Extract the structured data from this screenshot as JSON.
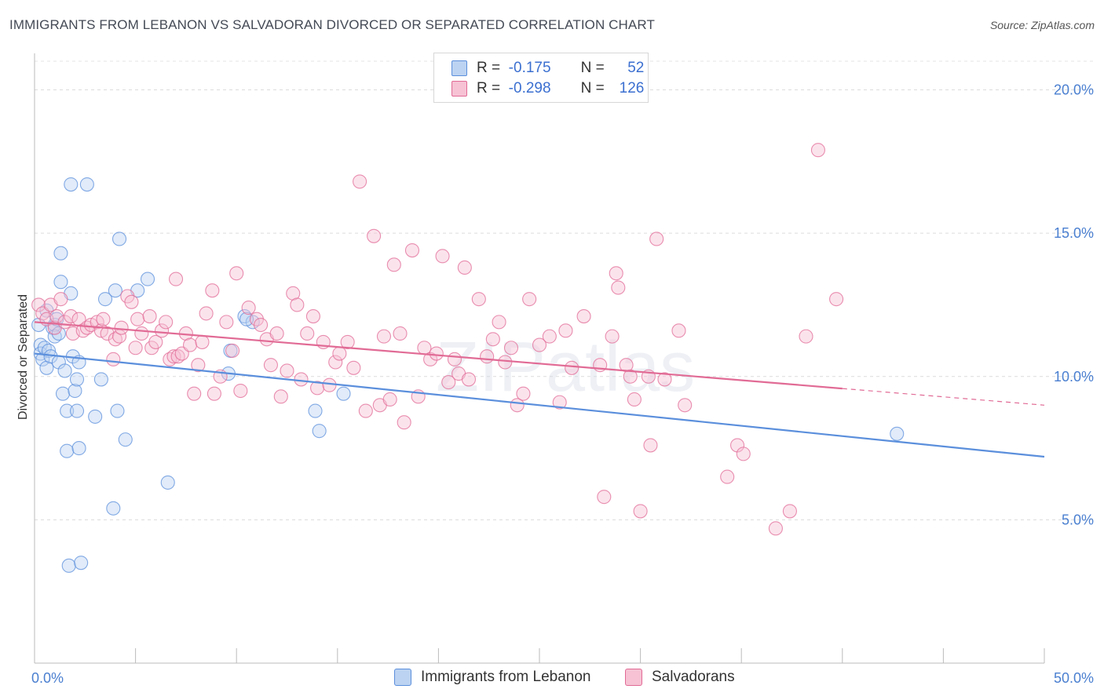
{
  "title": "IMMIGRANTS FROM LEBANON VS SALVADORAN DIVORCED OR SEPARATED CORRELATION CHART",
  "source": "Source: ZipAtlas.com",
  "watermark": "ZIPatlas",
  "legend_top": [
    {
      "r_label": "R =",
      "r_value": "-0.175",
      "n_label": "N =",
      "n_value": "52",
      "color": "#5b8fdc",
      "fill": "#bcd3f2"
    },
    {
      "r_label": "R =",
      "r_value": "-0.298",
      "n_label": "N =",
      "n_value": "126",
      "color": "#e16b95",
      "fill": "#f6c2d4"
    }
  ],
  "chart_data": {
    "type": "scatter",
    "title": "IMMIGRANTS FROM LEBANON VS SALVADORAN DIVORCED OR SEPARATED CORRELATION CHART",
    "xlabel": "",
    "ylabel": "Divorced or Separated",
    "xlim": [
      0,
      50
    ],
    "ylim": [
      0,
      21
    ],
    "x_tick_labels": [
      "0.0%",
      "50.0%"
    ],
    "y_ticks": [
      5,
      10,
      15,
      20
    ],
    "y_tick_labels": [
      "5.0%",
      "10.0%",
      "15.0%",
      "20.0%"
    ],
    "grid": true,
    "legend_position": "top-center",
    "series": [
      {
        "name": "Immigrants from Lebanon",
        "color": "#5b8fdc",
        "fill": "#bcd3f2",
        "trend": {
          "x0": 0,
          "y0": 10.8,
          "x1": 50,
          "y1": 7.2,
          "dashed_from": null
        },
        "points": [
          [
            0.2,
            11.8
          ],
          [
            0.3,
            11.1
          ],
          [
            0.3,
            10.8
          ],
          [
            0.4,
            10.6
          ],
          [
            0.5,
            11.0
          ],
          [
            0.6,
            10.3
          ],
          [
            0.6,
            12.3
          ],
          [
            0.7,
            10.9
          ],
          [
            0.8,
            10.7
          ],
          [
            0.9,
            11.7
          ],
          [
            1.0,
            11.8
          ],
          [
            1.0,
            11.4
          ],
          [
            1.1,
            12.0
          ],
          [
            1.2,
            10.5
          ],
          [
            1.2,
            11.5
          ],
          [
            1.3,
            14.3
          ],
          [
            1.3,
            13.3
          ],
          [
            1.4,
            9.4
          ],
          [
            1.5,
            10.2
          ],
          [
            1.6,
            7.4
          ],
          [
            1.6,
            8.8
          ],
          [
            1.7,
            3.4
          ],
          [
            1.8,
            12.9
          ],
          [
            1.8,
            16.7
          ],
          [
            1.9,
            10.7
          ],
          [
            2.0,
            9.5
          ],
          [
            2.1,
            9.9
          ],
          [
            2.1,
            8.8
          ],
          [
            2.2,
            7.5
          ],
          [
            2.2,
            10.5
          ],
          [
            2.3,
            3.5
          ],
          [
            2.6,
            16.7
          ],
          [
            3.0,
            8.6
          ],
          [
            3.3,
            9.9
          ],
          [
            3.5,
            12.7
          ],
          [
            3.9,
            5.4
          ],
          [
            4.0,
            13.0
          ],
          [
            4.1,
            8.8
          ],
          [
            4.2,
            14.8
          ],
          [
            4.5,
            7.8
          ],
          [
            5.1,
            13.0
          ],
          [
            5.6,
            13.4
          ],
          [
            6.6,
            6.3
          ],
          [
            9.6,
            10.1
          ],
          [
            9.7,
            10.9
          ],
          [
            10.4,
            12.1
          ],
          [
            10.8,
            11.9
          ],
          [
            10.5,
            12.0
          ],
          [
            13.9,
            8.8
          ],
          [
            14.1,
            8.1
          ],
          [
            15.3,
            9.4
          ],
          [
            42.7,
            8.0
          ]
        ]
      },
      {
        "name": "Salvadorans",
        "color": "#e16b95",
        "fill": "#f6c2d4",
        "trend": {
          "x0": 0,
          "y0": 11.9,
          "x1": 50,
          "y1": 9.0,
          "dashed_from": 40.0
        },
        "points": [
          [
            0.2,
            12.5
          ],
          [
            0.4,
            12.2
          ],
          [
            0.6,
            12.0
          ],
          [
            0.8,
            12.5
          ],
          [
            1.0,
            11.7
          ],
          [
            1.1,
            12.1
          ],
          [
            1.3,
            12.7
          ],
          [
            1.5,
            11.9
          ],
          [
            1.8,
            12.1
          ],
          [
            1.9,
            11.5
          ],
          [
            2.2,
            12.0
          ],
          [
            2.4,
            11.6
          ],
          [
            2.6,
            11.7
          ],
          [
            2.8,
            11.8
          ],
          [
            3.1,
            11.9
          ],
          [
            3.3,
            11.6
          ],
          [
            3.4,
            12.0
          ],
          [
            3.6,
            11.5
          ],
          [
            3.9,
            10.6
          ],
          [
            4.0,
            11.3
          ],
          [
            4.2,
            11.4
          ],
          [
            4.3,
            11.7
          ],
          [
            4.6,
            12.8
          ],
          [
            4.8,
            12.6
          ],
          [
            5.0,
            11.0
          ],
          [
            5.1,
            12.0
          ],
          [
            5.3,
            11.5
          ],
          [
            5.7,
            12.1
          ],
          [
            5.8,
            11.0
          ],
          [
            6.0,
            11.2
          ],
          [
            6.3,
            11.6
          ],
          [
            6.5,
            11.9
          ],
          [
            6.7,
            10.6
          ],
          [
            6.9,
            10.7
          ],
          [
            7.0,
            13.4
          ],
          [
            7.1,
            10.7
          ],
          [
            7.3,
            10.8
          ],
          [
            7.5,
            11.5
          ],
          [
            7.7,
            11.1
          ],
          [
            7.9,
            9.4
          ],
          [
            8.1,
            10.4
          ],
          [
            8.3,
            11.2
          ],
          [
            8.5,
            12.2
          ],
          [
            8.8,
            13.0
          ],
          [
            8.9,
            9.4
          ],
          [
            9.2,
            10.0
          ],
          [
            9.5,
            11.9
          ],
          [
            9.8,
            10.9
          ],
          [
            10.0,
            13.6
          ],
          [
            10.2,
            9.5
          ],
          [
            10.6,
            12.4
          ],
          [
            11.0,
            12.0
          ],
          [
            11.2,
            11.8
          ],
          [
            11.5,
            11.3
          ],
          [
            11.7,
            10.4
          ],
          [
            12.0,
            11.5
          ],
          [
            12.2,
            9.3
          ],
          [
            12.5,
            10.2
          ],
          [
            12.8,
            12.9
          ],
          [
            13.0,
            12.5
          ],
          [
            13.2,
            9.9
          ],
          [
            13.5,
            11.5
          ],
          [
            13.8,
            12.1
          ],
          [
            14.0,
            9.6
          ],
          [
            14.3,
            11.2
          ],
          [
            14.6,
            9.7
          ],
          [
            14.9,
            10.5
          ],
          [
            15.1,
            10.8
          ],
          [
            15.5,
            11.2
          ],
          [
            15.8,
            10.3
          ],
          [
            16.1,
            16.8
          ],
          [
            16.4,
            8.8
          ],
          [
            16.8,
            14.9
          ],
          [
            17.1,
            9.0
          ],
          [
            17.3,
            11.4
          ],
          [
            17.6,
            9.2
          ],
          [
            17.8,
            13.9
          ],
          [
            18.1,
            11.5
          ],
          [
            18.3,
            8.4
          ],
          [
            18.7,
            14.4
          ],
          [
            19.0,
            9.3
          ],
          [
            19.3,
            11.0
          ],
          [
            19.6,
            10.6
          ],
          [
            19.9,
            10.8
          ],
          [
            20.2,
            14.2
          ],
          [
            20.5,
            9.8
          ],
          [
            20.8,
            10.6
          ],
          [
            21.0,
            10.1
          ],
          [
            21.3,
            13.8
          ],
          [
            21.5,
            9.9
          ],
          [
            22.0,
            12.7
          ],
          [
            22.4,
            10.7
          ],
          [
            22.7,
            11.3
          ],
          [
            23.0,
            11.9
          ],
          [
            23.3,
            10.5
          ],
          [
            23.6,
            11.0
          ],
          [
            23.9,
            9.0
          ],
          [
            24.2,
            9.4
          ],
          [
            24.5,
            12.7
          ],
          [
            25.0,
            11.1
          ],
          [
            25.5,
            11.4
          ],
          [
            26.0,
            9.1
          ],
          [
            26.3,
            11.6
          ],
          [
            26.6,
            10.3
          ],
          [
            27.2,
            12.1
          ],
          [
            28.0,
            10.4
          ],
          [
            28.2,
            5.8
          ],
          [
            28.6,
            11.4
          ],
          [
            28.8,
            13.6
          ],
          [
            28.9,
            13.1
          ],
          [
            29.3,
            10.4
          ],
          [
            29.5,
            10.0
          ],
          [
            29.7,
            9.2
          ],
          [
            30.0,
            5.3
          ],
          [
            30.4,
            10.0
          ],
          [
            30.8,
            14.8
          ],
          [
            31.2,
            9.9
          ],
          [
            31.9,
            11.6
          ],
          [
            32.2,
            9.0
          ],
          [
            34.3,
            6.5
          ],
          [
            34.8,
            7.6
          ],
          [
            35.1,
            7.3
          ],
          [
            36.7,
            4.7
          ],
          [
            37.4,
            5.3
          ],
          [
            38.2,
            11.4
          ],
          [
            38.8,
            17.9
          ],
          [
            39.7,
            12.7
          ],
          [
            30.5,
            7.6
          ]
        ]
      }
    ]
  },
  "legend_bottom": [
    {
      "label": "Immigrants from Lebanon",
      "color": "#5b8fdc",
      "fill": "#bcd3f2"
    },
    {
      "label": "Salvadorans",
      "color": "#e16b95",
      "fill": "#f6c2d4"
    }
  ]
}
